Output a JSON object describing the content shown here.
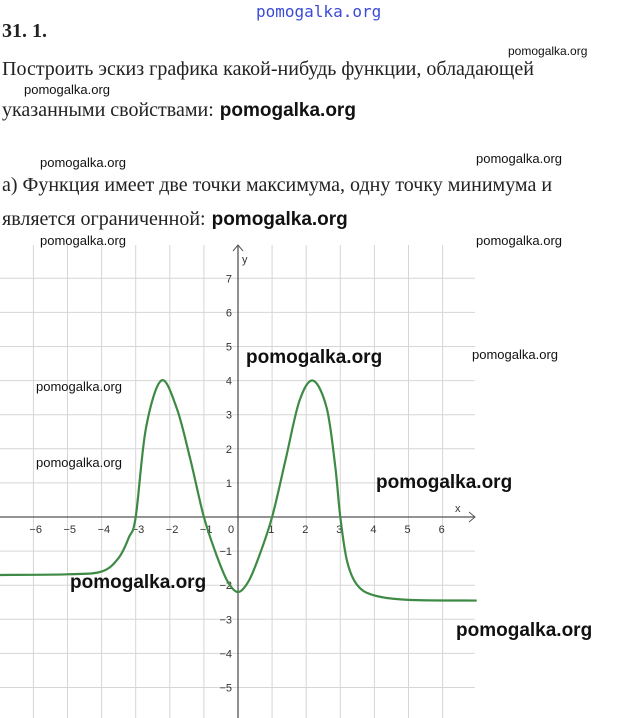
{
  "header": {
    "watermark_top": "pomogalka.org",
    "problem_number": "31. 1."
  },
  "text": {
    "line1": "Построить эскиз графика какой-нибудь функции, обладающей",
    "line2": "указанными свойствами:",
    "line3": "а) Функция имеет две точки максимума, одну точку минимума и",
    "line4": "является ограниченной:"
  },
  "watermarks": [
    "pomogalka.org",
    "pomogalka.org",
    "pomogalka.org",
    "pomogalka.org",
    "pomogalka.org",
    "pomogalka.org",
    "pomogalka.org",
    "pomogalka.org",
    "pomogalka.org",
    "pomogalka.org",
    "pomogalka.org",
    "pomogalka.org",
    "pomogalka.org",
    "pomogalka.org",
    "pomogalka.org"
  ],
  "chart_data": {
    "type": "line",
    "xlabel": "x",
    "ylabel": "y",
    "xlim": [
      -7,
      7
    ],
    "ylim": [
      -5.9,
      7.9
    ],
    "grid": true,
    "x_ticks": [
      "−6",
      "−5",
      "−4",
      "−3",
      "−2",
      "−1",
      "0",
      "1",
      "2",
      "3",
      "4",
      "5",
      "6"
    ],
    "y_ticks": [
      "7",
      "6",
      "5",
      "4",
      "3",
      "2",
      "1",
      "−1",
      "−2",
      "−3",
      "−4",
      "−5"
    ],
    "line_color": "#3d8a44",
    "series": [
      {
        "x": [
          -7,
          -5,
          -4,
          -3.5,
          -3.2,
          -3,
          -2.7,
          -2.25,
          -1.8,
          -1.4,
          -1,
          -0.6,
          -0.3,
          0,
          0.3,
          0.6,
          1,
          1.4,
          1.8,
          2.2,
          2.6,
          2.85,
          3,
          3.2,
          3.5,
          4,
          5,
          7
        ],
        "y": [
          -1.7,
          -1.68,
          -1.6,
          -1.2,
          -0.6,
          0,
          2.6,
          4,
          3.2,
          1.7,
          0,
          -1.2,
          -1.9,
          -2.2,
          -1.9,
          -1.2,
          0,
          1.7,
          3.4,
          4,
          3.2,
          1.5,
          0,
          -1.3,
          -2.0,
          -2.3,
          -2.43,
          -2.45
        ]
      }
    ]
  }
}
